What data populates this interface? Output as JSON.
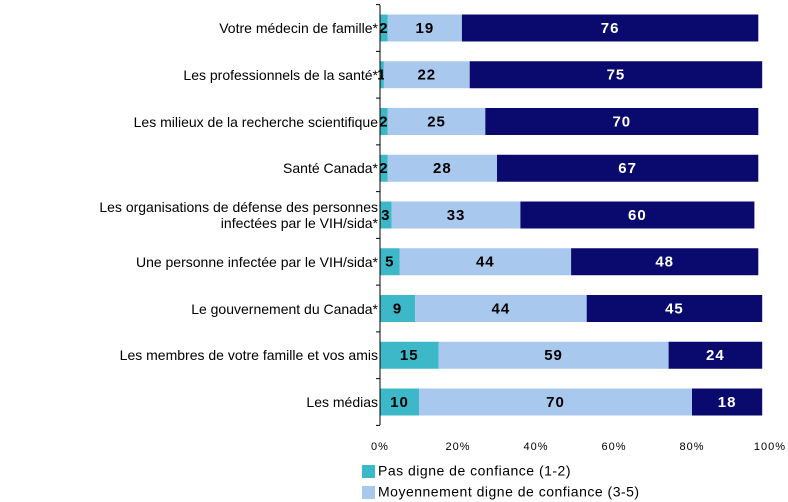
{
  "chart_data": {
    "type": "stacked-bar-horizontal",
    "categories": [
      "Votre médecin de famille*",
      "Les professionnels de la santé*",
      "Les milieux de la recherche scientifique",
      "Santé Canada*",
      "Les organisations de défense des personnes\ninfectées par le VIH/sida*",
      "Une personne infectée par le VIH/sida*",
      "Le gouvernement du Canada*",
      "Les membres de votre famille et vos amis",
      "Les médias"
    ],
    "series": [
      {
        "name": "Pas digne de confiance (1-2)",
        "color": "#3cb8c8",
        "values": [
          2,
          1,
          2,
          2,
          3,
          5,
          9,
          15,
          10
        ]
      },
      {
        "name": "Moyennement digne de confiance (3-5)",
        "color": "#a9c8ee",
        "values": [
          19,
          22,
          25,
          28,
          33,
          44,
          44,
          59,
          70
        ]
      },
      {
        "color": "#0a0a6e",
        "values": [
          76,
          75,
          70,
          67,
          60,
          48,
          45,
          24,
          18
        ]
      }
    ],
    "xlim": [
      0,
      100
    ],
    "xticks": [
      {
        "value": 0,
        "label": "0%"
      },
      {
        "value": 20,
        "label": "20%"
      },
      {
        "value": 40,
        "label": "40%"
      },
      {
        "value": 60,
        "label": "60%"
      },
      {
        "value": 80,
        "label": "80%"
      },
      {
        "value": 100,
        "label": "100%"
      }
    ]
  }
}
